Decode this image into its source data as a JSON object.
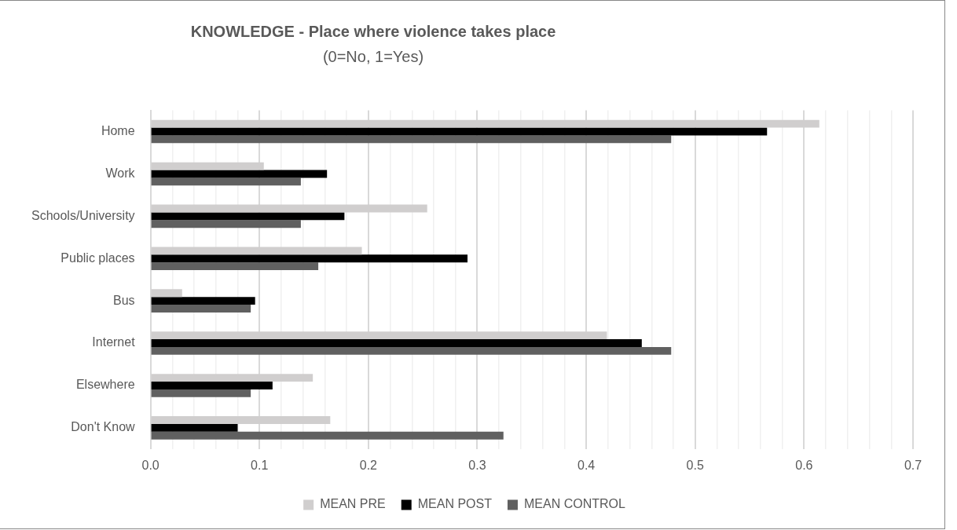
{
  "chart_data": {
    "type": "bar",
    "orientation": "horizontal",
    "title": "KNOWLEDGE - Place where violence takes place",
    "subtitle": "(0=No, 1=Yes)",
    "categories": [
      "Home",
      "Work",
      "Schools/University",
      "Public places",
      "Bus",
      "Internet",
      "Elsewhere",
      "Don't Know"
    ],
    "series": [
      {
        "name": "MEAN PRE",
        "color": "#d0cece",
        "values": [
          0.614,
          0.104,
          0.254,
          0.194,
          0.029,
          0.419,
          0.149,
          0.165
        ]
      },
      {
        "name": "MEAN POST",
        "color": "#000000",
        "values": [
          0.566,
          0.162,
          0.178,
          0.291,
          0.096,
          0.451,
          0.112,
          0.08
        ]
      },
      {
        "name": "MEAN CONTROL",
        "color": "#606060",
        "values": [
          0.478,
          0.138,
          0.138,
          0.154,
          0.092,
          0.478,
          0.092,
          0.324
        ]
      }
    ],
    "xlim": [
      0,
      0.7
    ],
    "xticks": [
      {
        "value": 0,
        "label": "0.0"
      },
      {
        "value": 0.02,
        "label": null
      },
      {
        "value": 0.04,
        "label": null
      },
      {
        "value": 0.06,
        "label": null
      },
      {
        "value": 0.08,
        "label": null
      },
      {
        "value": 0.1,
        "label": "0.1"
      },
      {
        "value": 0.12,
        "label": null
      },
      {
        "value": 0.14,
        "label": null
      },
      {
        "value": 0.16,
        "label": null
      },
      {
        "value": 0.18,
        "label": null
      },
      {
        "value": 0.2,
        "label": "0.2"
      },
      {
        "value": 0.22,
        "label": null
      },
      {
        "value": 0.24,
        "label": null
      },
      {
        "value": 0.26,
        "label": null
      },
      {
        "value": 0.28,
        "label": null
      },
      {
        "value": 0.3,
        "label": "0.3"
      },
      {
        "value": 0.32,
        "label": null
      },
      {
        "value": 0.34,
        "label": null
      },
      {
        "value": 0.36,
        "label": null
      },
      {
        "value": 0.38,
        "label": null
      },
      {
        "value": 0.4,
        "label": "0.4"
      },
      {
        "value": 0.42,
        "label": null
      },
      {
        "value": 0.44,
        "label": null
      },
      {
        "value": 0.46,
        "label": null
      },
      {
        "value": 0.48,
        "label": null
      },
      {
        "value": 0.5,
        "label": "0.5"
      },
      {
        "value": 0.52,
        "label": null
      },
      {
        "value": 0.54,
        "label": null
      },
      {
        "value": 0.56,
        "label": null
      },
      {
        "value": 0.58,
        "label": null
      },
      {
        "value": 0.6,
        "label": "0.6"
      },
      {
        "value": 0.62,
        "label": null
      },
      {
        "value": 0.64,
        "label": null
      },
      {
        "value": 0.66,
        "label": null
      },
      {
        "value": 0.68,
        "label": null
      },
      {
        "value": 0.7,
        "label": "0.7"
      }
    ],
    "grid": "x",
    "legend": "bottom"
  }
}
